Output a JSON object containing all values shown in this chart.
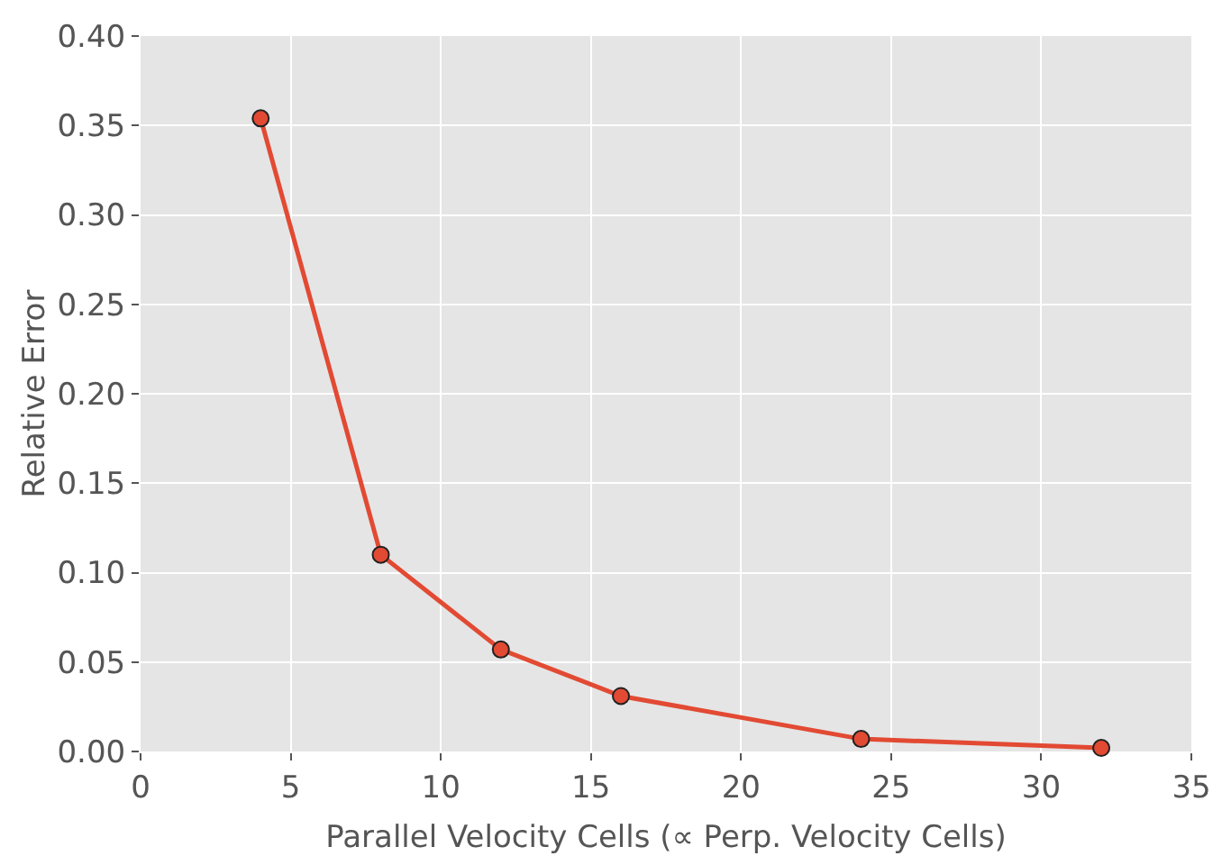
{
  "chart_data": {
    "type": "line",
    "xlabel": "Parallel Velocity Cells (∝ Perp. Velocity Cells)",
    "ylabel": "Relative Error",
    "x": [
      4,
      8,
      12,
      16,
      24,
      32
    ],
    "series": [
      {
        "color": "#e24a33",
        "values": [
          0.354,
          0.11,
          0.057,
          0.031,
          0.007,
          0.002
        ]
      }
    ],
    "xlim": [
      0,
      35
    ],
    "xticks": [
      0,
      5,
      10,
      15,
      20,
      25,
      30,
      35
    ],
    "ylim": [
      0,
      0.4
    ],
    "yticks": [
      {
        "value": 0,
        "label": "0.00"
      },
      {
        "value": 0.05,
        "label": "0.05"
      },
      {
        "value": 0.1,
        "label": "0.10"
      },
      {
        "value": 0.15,
        "label": "0.15"
      },
      {
        "value": 0.2,
        "label": "0.20"
      },
      {
        "value": 0.25,
        "label": "0.25"
      },
      {
        "value": 0.3,
        "label": "0.30"
      },
      {
        "value": 0.35,
        "label": "0.35"
      },
      {
        "value": 0.4,
        "label": "0.40"
      }
    ],
    "grid": true,
    "marker": "circle",
    "line_style": "solid"
  }
}
